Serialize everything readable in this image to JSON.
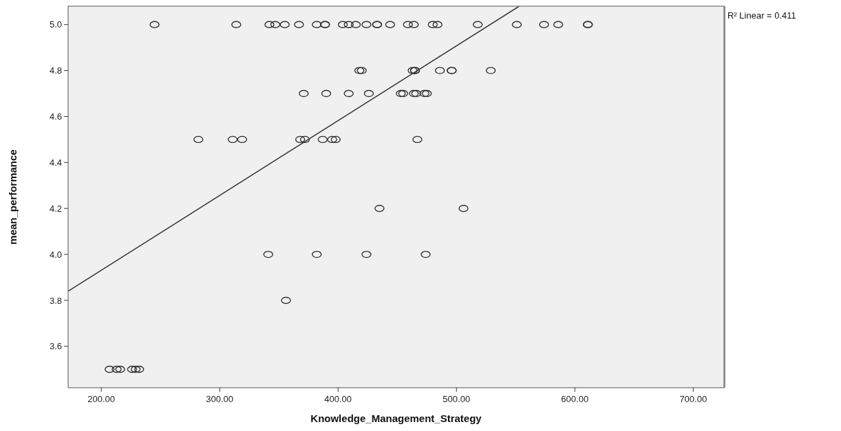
{
  "chart_data": {
    "type": "scatter",
    "xlabel": "Knowledge_Management_Strategy",
    "ylabel": "mean_performance",
    "xlim": [
      172,
      726
    ],
    "ylim": [
      3.42,
      5.08
    ],
    "xticks": [
      {
        "value": 200,
        "label": "200.00"
      },
      {
        "value": 300,
        "label": "300.00"
      },
      {
        "value": 400,
        "label": "400.00"
      },
      {
        "value": 500,
        "label": "500.00"
      },
      {
        "value": 600,
        "label": "600.00"
      },
      {
        "value": 700,
        "label": "700.00"
      }
    ],
    "yticks": [
      {
        "value": 3.6,
        "label": "3.6"
      },
      {
        "value": 3.8,
        "label": "3.8"
      },
      {
        "value": 4.0,
        "label": "4.0"
      },
      {
        "value": 4.2,
        "label": "4.2"
      },
      {
        "value": 4.4,
        "label": "4.4"
      },
      {
        "value": 4.6,
        "label": "4.6"
      },
      {
        "value": 4.8,
        "label": "4.8"
      },
      {
        "value": 5.0,
        "label": "5.0"
      }
    ],
    "grid": false,
    "marker": "circle",
    "annotations": [
      "R² Linear = 0.411"
    ],
    "series": [
      {
        "color": "#333333",
        "x": [
          245,
          314,
          342,
          347,
          355,
          367,
          382,
          389,
          389,
          404,
          409,
          415,
          424,
          433,
          433,
          444,
          459,
          464,
          480,
          484,
          518,
          551,
          574,
          586,
          611,
          611,
          418,
          420,
          463,
          465,
          465,
          486,
          496,
          496,
          529,
          371,
          390,
          409,
          426,
          453,
          455,
          464,
          466,
          473,
          475,
          282,
          311,
          319,
          368,
          372,
          387,
          395,
          398,
          467,
          435,
          506,
          341,
          382,
          424,
          474,
          356,
          207,
          213,
          216,
          226,
          229,
          232
        ],
        "values": [
          5.0,
          5.0,
          5.0,
          5.0,
          5.0,
          5.0,
          5.0,
          5.0,
          5.0,
          5.0,
          5.0,
          5.0,
          5.0,
          5.0,
          5.0,
          5.0,
          5.0,
          5.0,
          5.0,
          5.0,
          5.0,
          5.0,
          5.0,
          5.0,
          5.0,
          5.0,
          4.8,
          4.8,
          4.8,
          4.8,
          4.8,
          4.8,
          4.8,
          4.8,
          4.8,
          4.7,
          4.7,
          4.7,
          4.7,
          4.7,
          4.7,
          4.7,
          4.7,
          4.7,
          4.7,
          4.5,
          4.5,
          4.5,
          4.5,
          4.5,
          4.5,
          4.5,
          4.5,
          4.5,
          4.2,
          4.2,
          4.0,
          4.0,
          4.0,
          4.0,
          3.8,
          3.5,
          3.5,
          3.5,
          3.5,
          3.5,
          3.5
        ]
      },
      {
        "type": "line",
        "color": "#333333",
        "line_style": "solid",
        "marker": "none",
        "x": [
          172,
          553
        ],
        "values": [
          3.84,
          5.08
        ]
      }
    ]
  }
}
